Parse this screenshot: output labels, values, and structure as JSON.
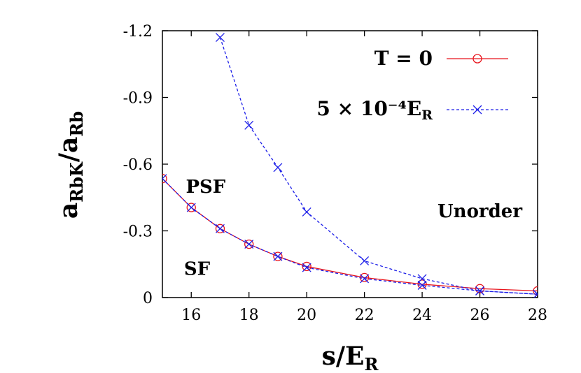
{
  "chart_data": {
    "type": "line",
    "xlabel": "s/E",
    "xlabel_sub": "R",
    "ylabel": "a",
    "ylabel_sub1": "RbK",
    "ylabel_mid": "/a",
    "ylabel_sub2": "Rb",
    "xlim": [
      15,
      28
    ],
    "ylim": [
      0,
      -1.2
    ],
    "y_inverted": true,
    "x_ticks": [
      16,
      18,
      20,
      22,
      24,
      26,
      28
    ],
    "x_tick_labels": [
      "16",
      "18",
      "20",
      "22",
      "24",
      "26",
      "28"
    ],
    "y_ticks": [
      0,
      -0.3,
      -0.6,
      -0.9,
      -1.2
    ],
    "y_tick_labels": [
      "0",
      "-0.3",
      "-0.6",
      "-0.9",
      "-1.2"
    ],
    "grid": false,
    "legend_position": "top-right",
    "series": [
      {
        "name": "T = 0",
        "color": "#e8141c",
        "line_style": "solid",
        "marker": "circle",
        "x": [
          15,
          16,
          17,
          18,
          19,
          20,
          22,
          24,
          26,
          28
        ],
        "y": [
          -0.535,
          -0.405,
          -0.31,
          -0.24,
          -0.185,
          -0.14,
          -0.09,
          -0.06,
          -0.04,
          -0.03
        ]
      },
      {
        "name": "5 × 10⁻⁴E",
        "name_sub": "R",
        "color": "#1c1ee8",
        "line_style": "dashed",
        "marker": "x",
        "x": [
          15,
          16,
          17,
          18,
          19,
          20,
          22,
          24,
          26,
          28
        ],
        "y": [
          -0.535,
          -0.405,
          -0.31,
          -0.24,
          -0.185,
          -0.135,
          -0.085,
          -0.055,
          -0.03,
          -0.015
        ]
      },
      {
        "name": "",
        "color": "#1c1ee8",
        "line_style": "dashed",
        "marker": "x",
        "x": [
          17,
          18,
          19,
          20,
          22,
          24,
          26,
          28
        ],
        "y": [
          -1.17,
          -0.775,
          -0.585,
          -0.385,
          -0.165,
          -0.085,
          -0.03,
          -0.015
        ]
      }
    ],
    "annotations": [
      {
        "text": "PSF",
        "x": 16.5,
        "y": -0.5
      },
      {
        "text": "SF",
        "x": 16.2,
        "y": -0.13
      },
      {
        "text": "Unorder",
        "x": 26.0,
        "y": -0.39
      }
    ]
  }
}
